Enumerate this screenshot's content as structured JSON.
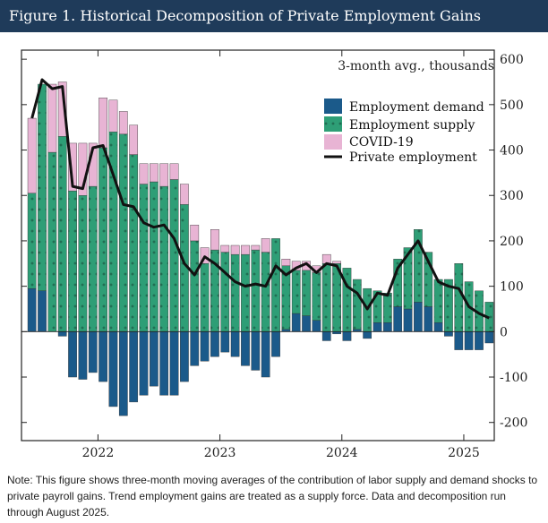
{
  "title": "Figure 1. Historical Decomposition of Private Employment Gains",
  "note": "Note: This figure shows three-month moving averages of the contribution of labor supply and demand shocks to private payroll gains. Trend employment gains are treated as a supply force. Data and decomposition run through August 2025.",
  "colors": {
    "demand": "#1b5a8a",
    "supply": "#2e9e76",
    "covid": "#e8b4d4",
    "line": "#111111",
    "title_bg": "#1f3b5a"
  },
  "chart_data": {
    "type": "bar",
    "stacked": true,
    "units_label": "3-month avg., thousands",
    "ylim": [
      -240,
      620
    ],
    "yticks": [
      -200,
      -100,
      0,
      100,
      200,
      300,
      400,
      500,
      600
    ],
    "ytick_labels": [
      "-200",
      "-100",
      "0",
      "100",
      "200",
      "300",
      "400",
      "500",
      "600"
    ],
    "xtick_labels": [
      "2022",
      "2023",
      "2024",
      "2025"
    ],
    "xtick_month_index": [
      7,
      19,
      31,
      43
    ],
    "start": "2021-06",
    "end": "2025-08",
    "legend_position": "upper-right",
    "legend": [
      "Employment demand",
      "Employment supply",
      "COVID-19",
      "Private employment"
    ],
    "series": [
      {
        "name": "Employment demand",
        "values": [
          95,
          90,
          0,
          -10,
          -100,
          -105,
          -90,
          -110,
          -165,
          -185,
          -155,
          -140,
          -120,
          -140,
          -140,
          -110,
          -75,
          -65,
          -55,
          -45,
          -55,
          -75,
          -85,
          -100,
          -55,
          5,
          40,
          35,
          25,
          -20,
          -5,
          -20,
          5,
          -15,
          20,
          20,
          55,
          50,
          65,
          55,
          20,
          -10,
          -40,
          -40,
          -40,
          -25
        ]
      },
      {
        "name": "Employment supply",
        "values": [
          210,
          455,
          395,
          430,
          310,
          300,
          320,
          405,
          440,
          435,
          390,
          325,
          330,
          320,
          335,
          280,
          200,
          150,
          180,
          175,
          170,
          170,
          180,
          175,
          205,
          140,
          95,
          100,
          105,
          150,
          150,
          140,
          110,
          95,
          70,
          65,
          105,
          135,
          160,
          120,
          95,
          115,
          150,
          110,
          90,
          65
        ]
      },
      {
        "name": "COVID-19",
        "values": [
          165,
          0,
          150,
          120,
          105,
          115,
          95,
          110,
          70,
          50,
          65,
          45,
          40,
          50,
          35,
          45,
          35,
          35,
          45,
          15,
          20,
          20,
          10,
          30,
          0,
          15,
          20,
          20,
          15,
          20,
          5,
          0,
          0,
          0,
          0,
          0,
          0,
          0,
          0,
          0,
          0,
          0,
          0,
          0,
          0,
          0
        ]
      },
      {
        "name": "Private employment",
        "kind": "line",
        "values": [
          470,
          555,
          535,
          540,
          320,
          315,
          405,
          410,
          345,
          280,
          275,
          240,
          230,
          235,
          205,
          150,
          125,
          165,
          150,
          130,
          110,
          100,
          105,
          100,
          145,
          125,
          140,
          150,
          130,
          150,
          145,
          100,
          85,
          50,
          85,
          80,
          140,
          170,
          200,
          155,
          110,
          100,
          95,
          55,
          40,
          30
        ]
      }
    ]
  }
}
